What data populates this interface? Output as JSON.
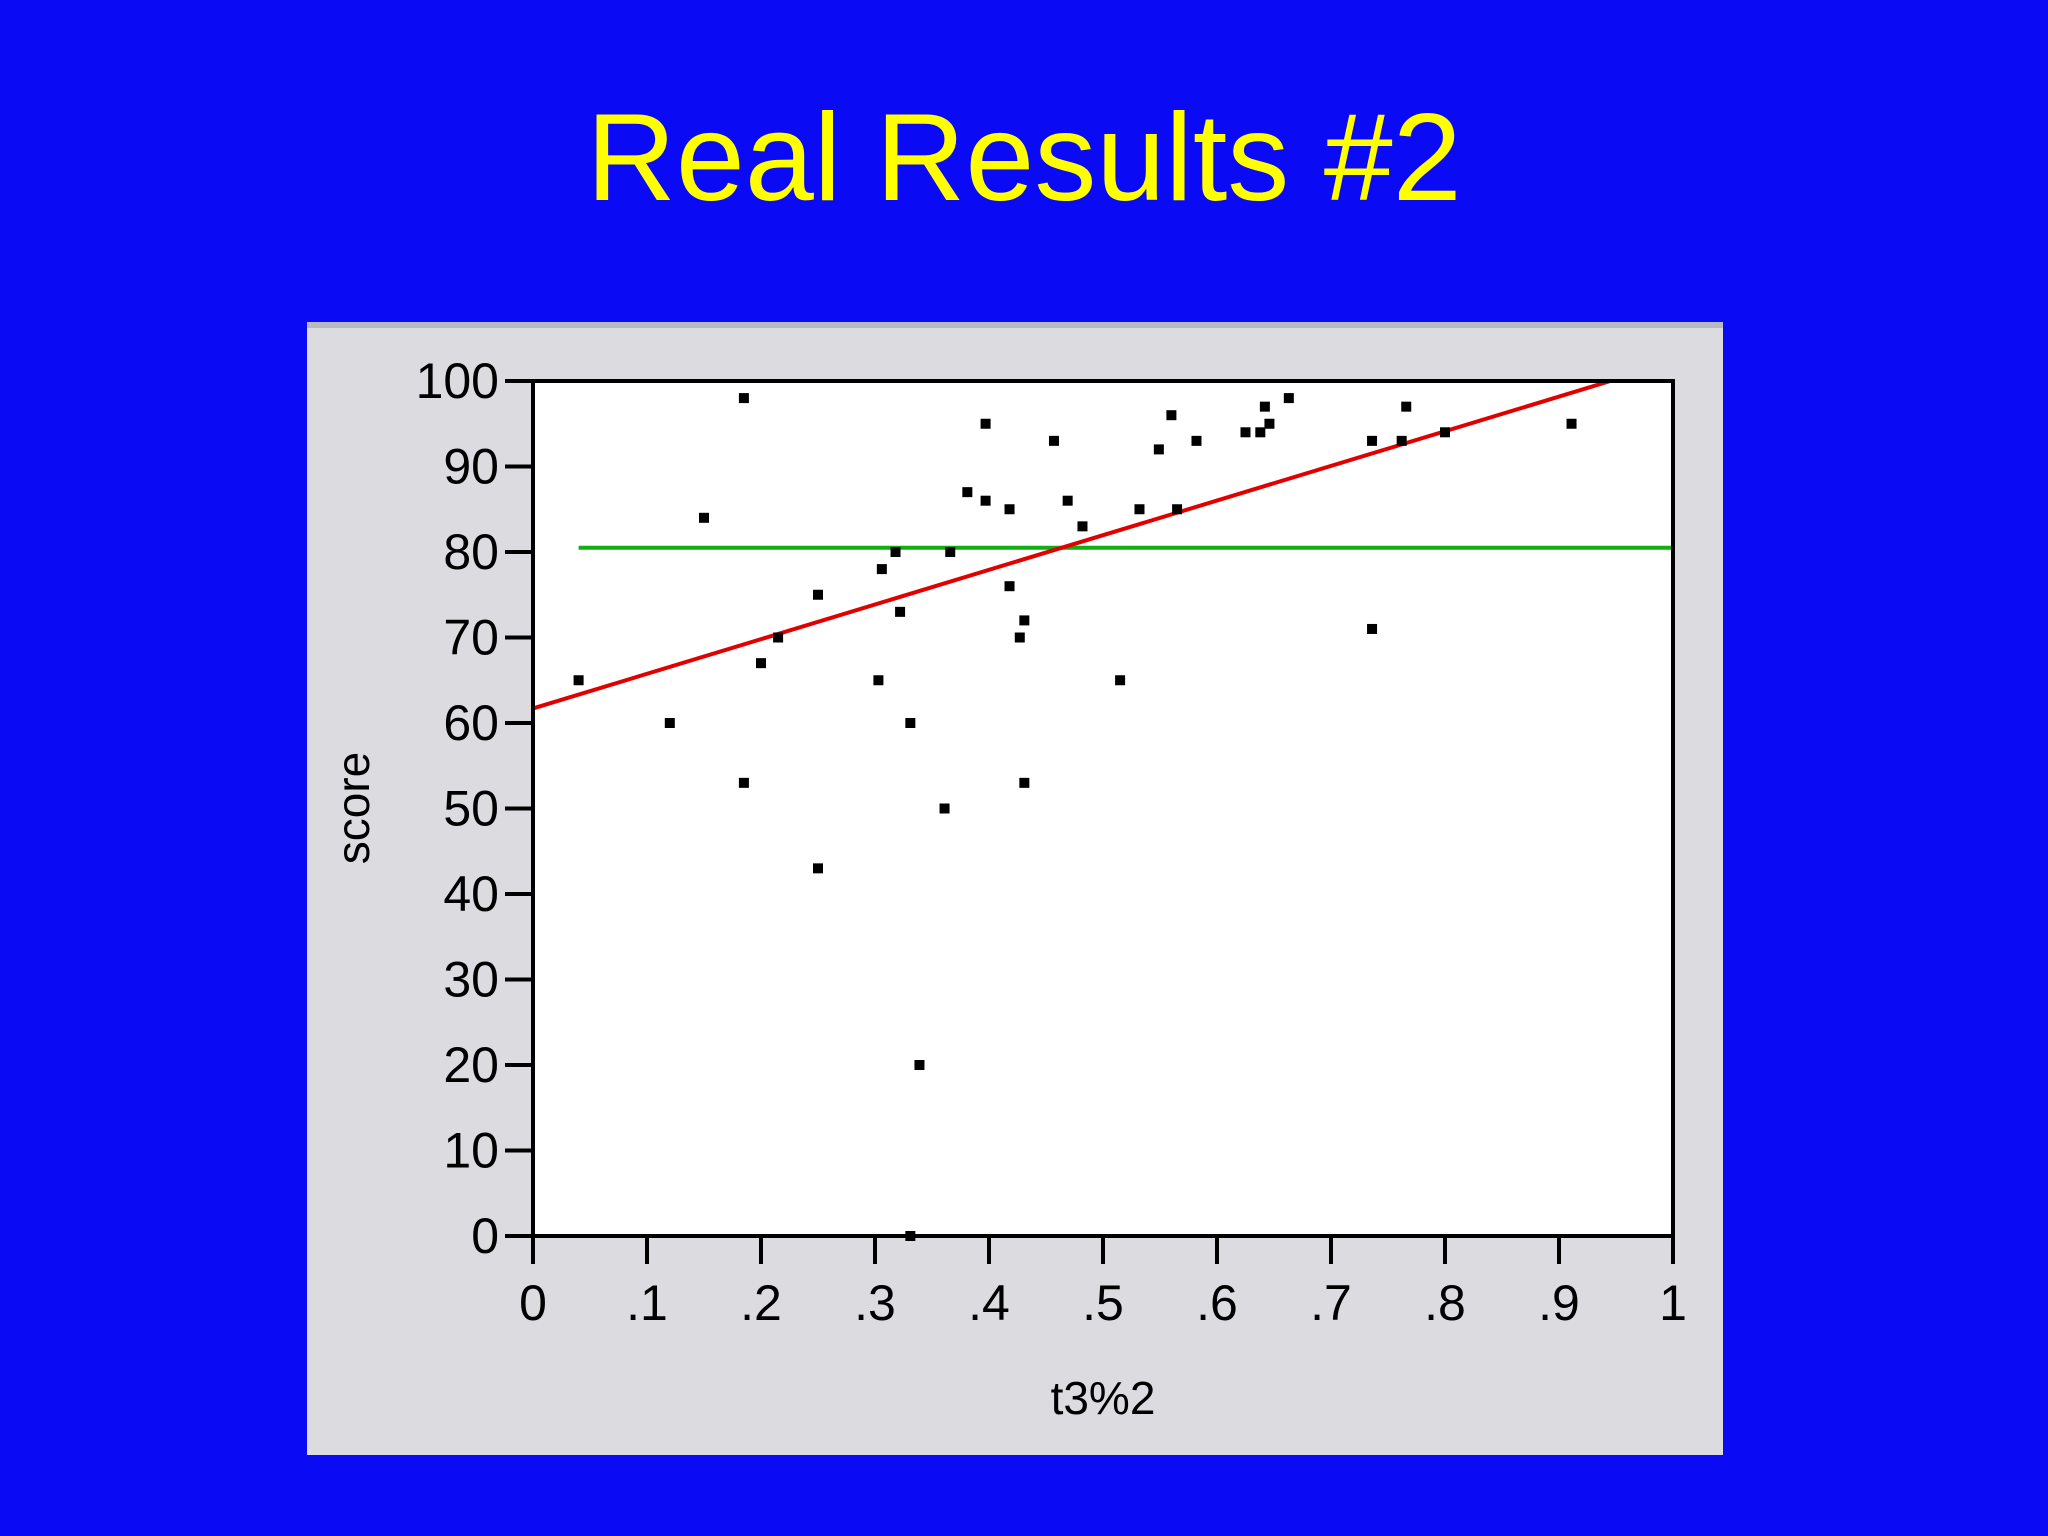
{
  "slide": {
    "title": "Real Results #2",
    "background_color": "#0a0af5",
    "title_color": "#ffff00"
  },
  "chart_data": {
    "type": "scatter",
    "xlabel": "t3%2",
    "ylabel": "score",
    "xlim": [
      0,
      1
    ],
    "ylim": [
      0,
      100
    ],
    "x_ticks": [
      "0",
      ".1",
      ".2",
      ".3",
      ".4",
      ".5",
      ".6",
      ".7",
      ".8",
      ".9",
      "1"
    ],
    "y_ticks": [
      "0",
      "10",
      "20",
      "30",
      "40",
      "50",
      "60",
      "70",
      "80",
      "90",
      "100"
    ],
    "grid": false,
    "points": [
      {
        "x": 0.04,
        "y": 65
      },
      {
        "x": 0.12,
        "y": 60
      },
      {
        "x": 0.15,
        "y": 84
      },
      {
        "x": 0.185,
        "y": 98
      },
      {
        "x": 0.185,
        "y": 53
      },
      {
        "x": 0.2,
        "y": 67
      },
      {
        "x": 0.215,
        "y": 70
      },
      {
        "x": 0.25,
        "y": 75
      },
      {
        "x": 0.25,
        "y": 43
      },
      {
        "x": 0.303,
        "y": 65
      },
      {
        "x": 0.306,
        "y": 78
      },
      {
        "x": 0.318,
        "y": 80
      },
      {
        "x": 0.322,
        "y": 73
      },
      {
        "x": 0.331,
        "y": 60
      },
      {
        "x": 0.331,
        "y": 0
      },
      {
        "x": 0.339,
        "y": 20
      },
      {
        "x": 0.361,
        "y": 50
      },
      {
        "x": 0.366,
        "y": 80
      },
      {
        "x": 0.381,
        "y": 87
      },
      {
        "x": 0.397,
        "y": 95
      },
      {
        "x": 0.397,
        "y": 86
      },
      {
        "x": 0.418,
        "y": 85
      },
      {
        "x": 0.418,
        "y": 76
      },
      {
        "x": 0.427,
        "y": 70
      },
      {
        "x": 0.431,
        "y": 72
      },
      {
        "x": 0.431,
        "y": 53
      },
      {
        "x": 0.457,
        "y": 93
      },
      {
        "x": 0.469,
        "y": 86
      },
      {
        "x": 0.482,
        "y": 83
      },
      {
        "x": 0.515,
        "y": 65
      },
      {
        "x": 0.532,
        "y": 85
      },
      {
        "x": 0.549,
        "y": 92
      },
      {
        "x": 0.56,
        "y": 96
      },
      {
        "x": 0.565,
        "y": 85
      },
      {
        "x": 0.582,
        "y": 93
      },
      {
        "x": 0.625,
        "y": 94
      },
      {
        "x": 0.638,
        "y": 94
      },
      {
        "x": 0.642,
        "y": 97
      },
      {
        "x": 0.646,
        "y": 95
      },
      {
        "x": 0.663,
        "y": 98
      },
      {
        "x": 0.736,
        "y": 93
      },
      {
        "x": 0.736,
        "y": 71
      },
      {
        "x": 0.762,
        "y": 93
      },
      {
        "x": 0.766,
        "y": 97
      },
      {
        "x": 0.8,
        "y": 94
      },
      {
        "x": 0.911,
        "y": 95
      }
    ],
    "fit_line": {
      "type": "linear",
      "x": [
        0,
        0.945
      ],
      "y": [
        61.7,
        100
      ],
      "color": "#e00000"
    },
    "mean_line": {
      "y": 80.5,
      "x_start": 0.04,
      "x_end": 1,
      "color": "#10b010"
    },
    "point_color": "#000000"
  }
}
